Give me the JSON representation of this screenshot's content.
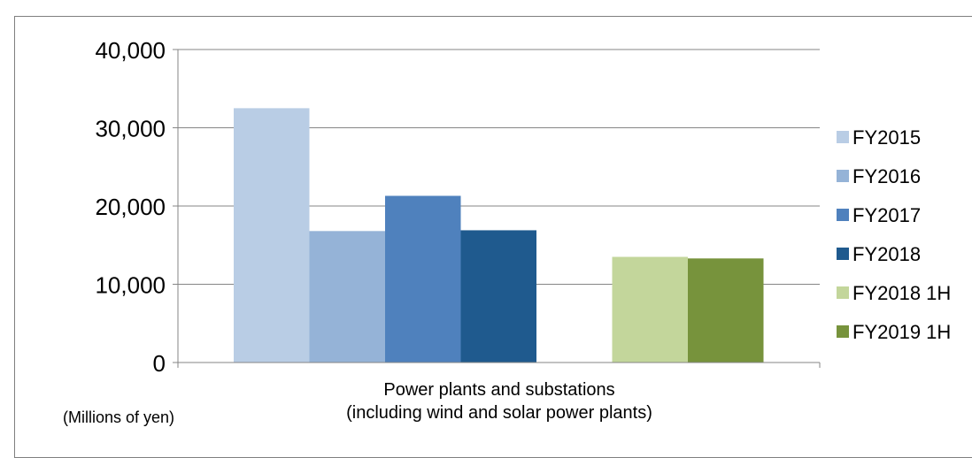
{
  "chart_data": {
    "type": "bar",
    "categories": [
      "Power plants and substations (including wind and solar power plants)"
    ],
    "category_label_lines": [
      "Power plants and substations",
      "(including wind and solar power plants)"
    ],
    "unit_note": "(Millions of yen)",
    "ylim": [
      0,
      40000
    ],
    "yticks": [
      0,
      10000,
      20000,
      30000,
      40000
    ],
    "ytick_labels": [
      "0",
      "10,000",
      "20,000",
      "30,000",
      "40,000"
    ],
    "grid": true,
    "legend_position": "right",
    "series": [
      {
        "name": "FY2015",
        "values": [
          32500
        ],
        "color": "#b9cde5",
        "group": 0
      },
      {
        "name": "FY2016",
        "values": [
          16800
        ],
        "color": "#95b3d7",
        "group": 0
      },
      {
        "name": "FY2017",
        "values": [
          21300
        ],
        "color": "#4f81bd",
        "group": 0
      },
      {
        "name": "FY2018",
        "values": [
          16900
        ],
        "color": "#1f5a8e",
        "group": 0
      },
      {
        "name": "FY2018 1H",
        "values": [
          13500
        ],
        "color": "#c3d69b",
        "group": 1
      },
      {
        "name": "FY2019 1H",
        "values": [
          13300
        ],
        "color": "#77933c",
        "group": 1
      }
    ]
  }
}
